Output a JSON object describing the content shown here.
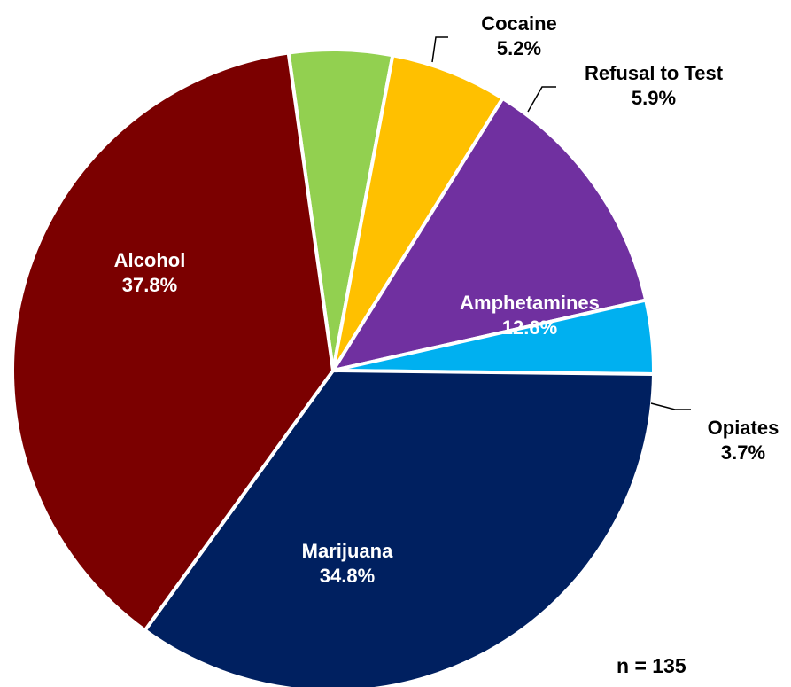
{
  "chart_data": {
    "type": "pie",
    "title": "",
    "slices": [
      {
        "label": "Cocaine",
        "value": 5.2,
        "display": "5.2%",
        "color": "#92D050"
      },
      {
        "label": "Refusal to Test",
        "value": 5.9,
        "display": "5.9%",
        "color": "#FFC000"
      },
      {
        "label": "Amphetamines",
        "value": 12.6,
        "display": "12.6%",
        "color": "#7030A0"
      },
      {
        "label": "Opiates",
        "value": 3.7,
        "display": "3.7%",
        "color": "#00B0F0"
      },
      {
        "label": "Marijuana",
        "value": 34.8,
        "display": "34.8%",
        "color": "#002060"
      },
      {
        "label": "Alcohol",
        "value": 37.8,
        "display": "37.8%",
        "color": "#7B0000"
      }
    ],
    "start_angle_deg": -8,
    "direction": "clockwise",
    "note": "n = 135"
  }
}
